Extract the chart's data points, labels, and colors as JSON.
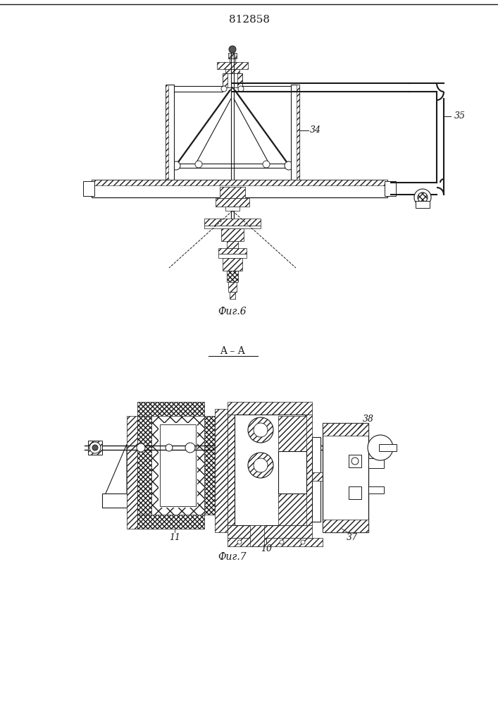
{
  "title": "812858",
  "fig6_label": "Фиг.6",
  "fig7_label": "Фиг.7",
  "section_label": "A – A",
  "ref_34": "34",
  "ref_35": "35",
  "ref_10": "10",
  "ref_11": "11",
  "ref_37": "37",
  "ref_38": "38",
  "line_color": "#1a1a1a",
  "bg_color": "#ffffff"
}
